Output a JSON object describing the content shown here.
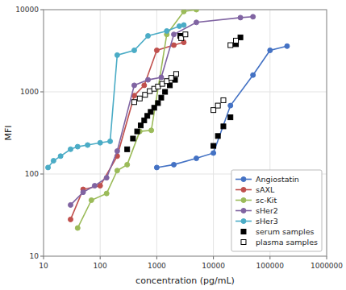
{
  "chart_data": {
    "type": "line",
    "xlabel": "concentration (pg/mL)",
    "ylabel": "MFI",
    "log": true,
    "xlim": [
      10,
      1000000
    ],
    "ylim": [
      10,
      10000
    ],
    "xticks": [
      10,
      100,
      1000,
      10000,
      100000,
      1000000
    ],
    "yticks": [
      10,
      100,
      1000,
      10000
    ],
    "grid": true,
    "legend": "lower right",
    "series": [
      {
        "name": "Angiostatin",
        "type": "line",
        "marker": "circle",
        "line_style": "solid",
        "color": "#4472c4",
        "x": [
          1000,
          2000,
          5000,
          10000,
          20000,
          50000,
          100000,
          200000
        ],
        "values": [
          120,
          130,
          155,
          180,
          680,
          1600,
          3200,
          3600
        ]
      },
      {
        "name": "sAXL",
        "type": "line",
        "marker": "circle",
        "line_style": "solid",
        "color": "#c0504d",
        "x": [
          30,
          50,
          100,
          200,
          400,
          600,
          1000,
          2000,
          3000
        ],
        "values": [
          28,
          65,
          72,
          165,
          900,
          1200,
          3200,
          3700,
          4000
        ]
      },
      {
        "name": "sc-Kit",
        "type": "line",
        "marker": "circle",
        "line_style": "solid",
        "color": "#9bbb59",
        "x": [
          40,
          70,
          130,
          200,
          300,
          500,
          800,
          1500,
          3000,
          5000
        ],
        "values": [
          22,
          48,
          58,
          110,
          130,
          330,
          340,
          5000,
          9500,
          10000
        ]
      },
      {
        "name": "sHer2",
        "type": "line",
        "marker": "circle",
        "line_style": "solid",
        "color": "#8064a2",
        "x": [
          30,
          50,
          80,
          130,
          200,
          400,
          700,
          1200,
          2000,
          5000,
          30000,
          50000
        ],
        "values": [
          42,
          60,
          72,
          90,
          190,
          1200,
          1400,
          1500,
          5000,
          7000,
          8000,
          8200
        ]
      },
      {
        "name": "sHer3",
        "type": "line",
        "marker": "circle",
        "line_style": "solid",
        "color": "#4bacc6",
        "x": [
          12,
          15,
          20,
          30,
          40,
          60,
          100,
          150,
          200,
          400,
          700,
          1500,
          2500,
          3000
        ],
        "values": [
          120,
          145,
          165,
          200,
          215,
          225,
          240,
          250,
          2800,
          3200,
          4800,
          5500,
          6300,
          6500
        ]
      },
      {
        "name": "serum samples",
        "type": "scatter",
        "marker": "square",
        "color": "#000000",
        "x": [
          300,
          380,
          450,
          520,
          600,
          680,
          780,
          900,
          1050,
          1200,
          1400,
          1700,
          2100,
          2600,
          10000,
          12000,
          15000,
          20000,
          25000,
          30000
        ],
        "values": [
          200,
          270,
          330,
          390,
          450,
          510,
          570,
          640,
          730,
          850,
          1000,
          1200,
          1400,
          4800,
          220,
          290,
          380,
          490,
          3800,
          4600
        ]
      },
      {
        "name": "plasma samples",
        "type": "scatter",
        "marker": "square-open",
        "color": "#000000",
        "x": [
          400,
          500,
          620,
          750,
          900,
          1050,
          1250,
          1500,
          1800,
          2200,
          2700,
          3200,
          10000,
          12000,
          15000,
          20000,
          25000
        ],
        "values": [
          750,
          830,
          920,
          1020,
          1090,
          1160,
          1250,
          1350,
          1480,
          1650,
          4500,
          5000,
          600,
          680,
          790,
          3700,
          4200
        ]
      }
    ]
  }
}
